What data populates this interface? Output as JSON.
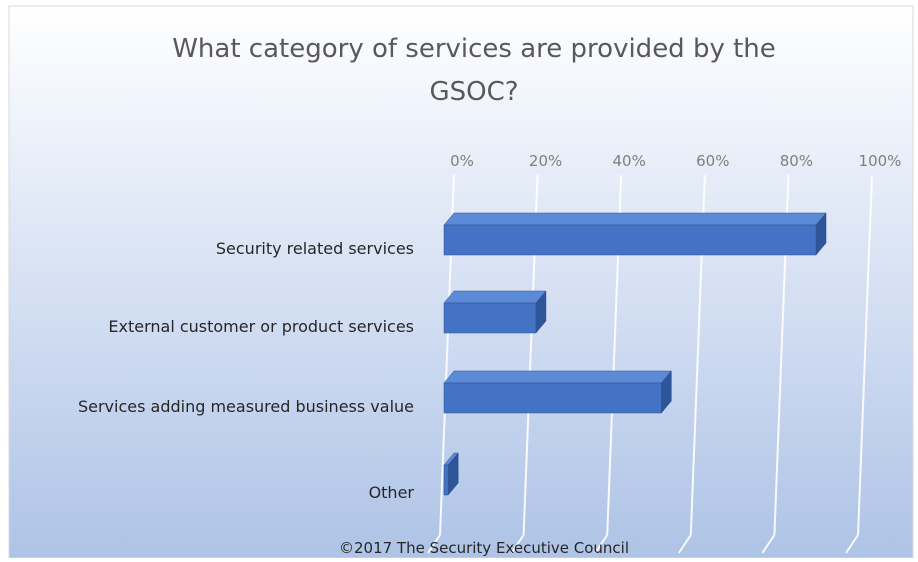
{
  "chart_data": {
    "type": "bar",
    "orientation": "horizontal",
    "style": "3d-clustered-bar",
    "title": "What category of services are provided by the GSOC?",
    "title_lines": [
      "What category of services are provided by the",
      "GSOC?"
    ],
    "categories": [
      "Security related services",
      "External customer or product services",
      "Services adding measured business value",
      "Other"
    ],
    "values": [
      89,
      22,
      52,
      1
    ],
    "value_unit": "%",
    "xlim": [
      0,
      100
    ],
    "x_ticks": [
      0,
      20,
      40,
      60,
      80,
      100
    ],
    "x_tick_labels": [
      "0%",
      "20%",
      "40%",
      "60%",
      "80%",
      "100%"
    ],
    "x_axis_position": "top",
    "grid": true,
    "legend": "none",
    "footer": "©2017 The Security Executive Council",
    "colors": {
      "bar_front": "#4472C4",
      "bar_top": "#5B8AD6",
      "bar_side": "#2E5597",
      "bar_outline": "#2F528F",
      "background_top": "#ffffff",
      "background_bottom": "#aec3e6",
      "frame": "#d9d9d9",
      "gridline": "#ffffff",
      "title_text": "#595959",
      "label_text": "#262626",
      "tick_text": "#7f7f7f"
    }
  }
}
